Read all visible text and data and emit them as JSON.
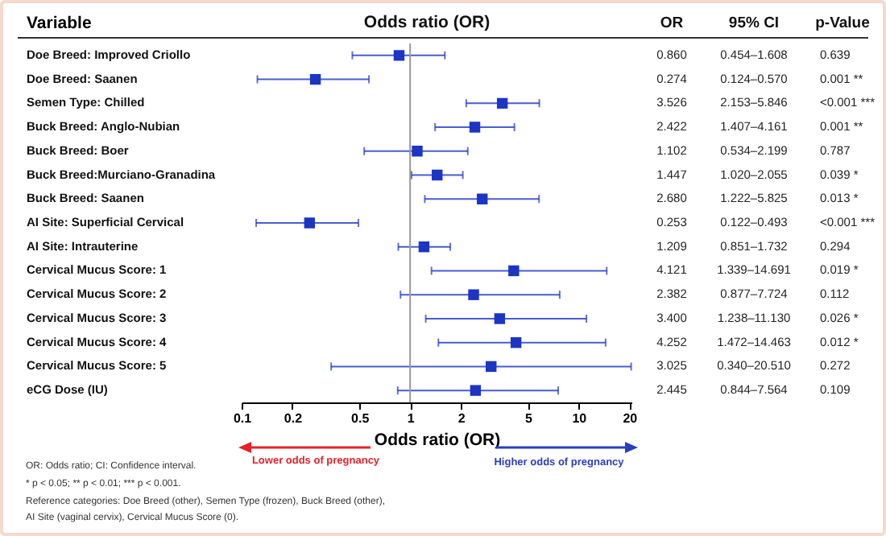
{
  "chart_data": {
    "type": "scatter",
    "title": "Odds ratio (OR)",
    "xlabel": "Odds ratio (OR)",
    "ylabel": "Variable",
    "orientation": "horizontal",
    "categories": [
      "Doe Breed: Improved Criollo",
      "Doe Breed: Saanen",
      "Semen Type: Chilled",
      "Buck Breed: Anglo-Nubian",
      "Buck Breed: Boer",
      "Buck Breed:Murciano-Granadina",
      "Buck Breed: Saanen",
      "AI Site: Superficial Cervical",
      "AI Site: Intrauterine",
      "Cervical Mucus Score: 1",
      "Cervical Mucus Score: 2",
      "Cervical Mucus Score: 3",
      "Cervical Mucus Score: 4",
      "Cervical Mucus Score: 5",
      "eCG Dose (IU)"
    ],
    "series": [
      {
        "color": "#1c35c4",
        "values": [
          0.86,
          0.274,
          3.526,
          2.422,
          1.102,
          1.447,
          2.68,
          0.253,
          1.209,
          4.121,
          2.382,
          3.4,
          4.252,
          3.025,
          2.445
        ],
        "errors": [
          [
            0.454,
            1.608
          ],
          [
            0.124,
            0.57
          ],
          [
            2.153,
            5.846
          ],
          [
            1.407,
            4.161
          ],
          [
            0.534,
            2.199
          ],
          [
            1.02,
            2.055
          ],
          [
            1.222,
            5.825
          ],
          [
            0.122,
            0.493
          ],
          [
            0.851,
            1.732
          ],
          [
            1.339,
            14.691
          ],
          [
            0.877,
            7.724
          ],
          [
            1.238,
            11.13
          ],
          [
            1.472,
            14.463
          ],
          [
            0.34,
            20.51
          ],
          [
            0.844,
            7.564
          ]
        ],
        "value_labels": [
          "0.860",
          "0.274",
          "3.526",
          "2.422",
          "1.102",
          "1.447",
          "2.680",
          "0.253",
          "1.209",
          "4.121",
          "2.382",
          "3.400",
          "4.252",
          "3.025",
          "2.445"
        ]
      }
    ],
    "log": "x",
    "xlim": [
      0.1,
      20.6
    ],
    "xticks": [
      0.1,
      0.2,
      0.5,
      1,
      2,
      5,
      10,
      20
    ],
    "grid": false,
    "marker": "square",
    "ref_lines": [
      {
        "axis": "x",
        "value": 1,
        "color": "#999999"
      }
    ],
    "annotations": [
      "OR",
      "95% CI",
      "p-Value",
      "Lower odds of pregnancy",
      "Higher odds of pregnancy",
      "OR: Odds ratio; CI: Confidence interval.",
      "* p < 0.05; ** p < 0.01; *** p < 0.001.",
      "Reference categories: Doe Breed (other), Semen Type (frozen), Buck Breed (other),",
      "AI Site (vaginal cervix), Cervical Mucus Score (0).",
      "0.454–1.608",
      "0.124–0.570",
      "2.153–5.846",
      "1.407–4.161",
      "0.534–2.199",
      "1.020–2.055",
      "1.222–5.825",
      "0.122–0.493",
      "0.851–1.732",
      "1.339–14.691",
      "0.877–7.724",
      "1.238–11.130",
      "1.472–14.463",
      "0.340–20.510",
      "0.844–7.564",
      "0.639",
      "0.001 **",
      "<0.001 ***",
      "0.001 **",
      "0.787",
      "0.039 *",
      "0.013 *",
      "<0.001 ***",
      "0.294",
      "0.019 *",
      "0.112",
      "0.026 *",
      "0.012 *",
      "0.272",
      "0.109"
    ]
  }
}
